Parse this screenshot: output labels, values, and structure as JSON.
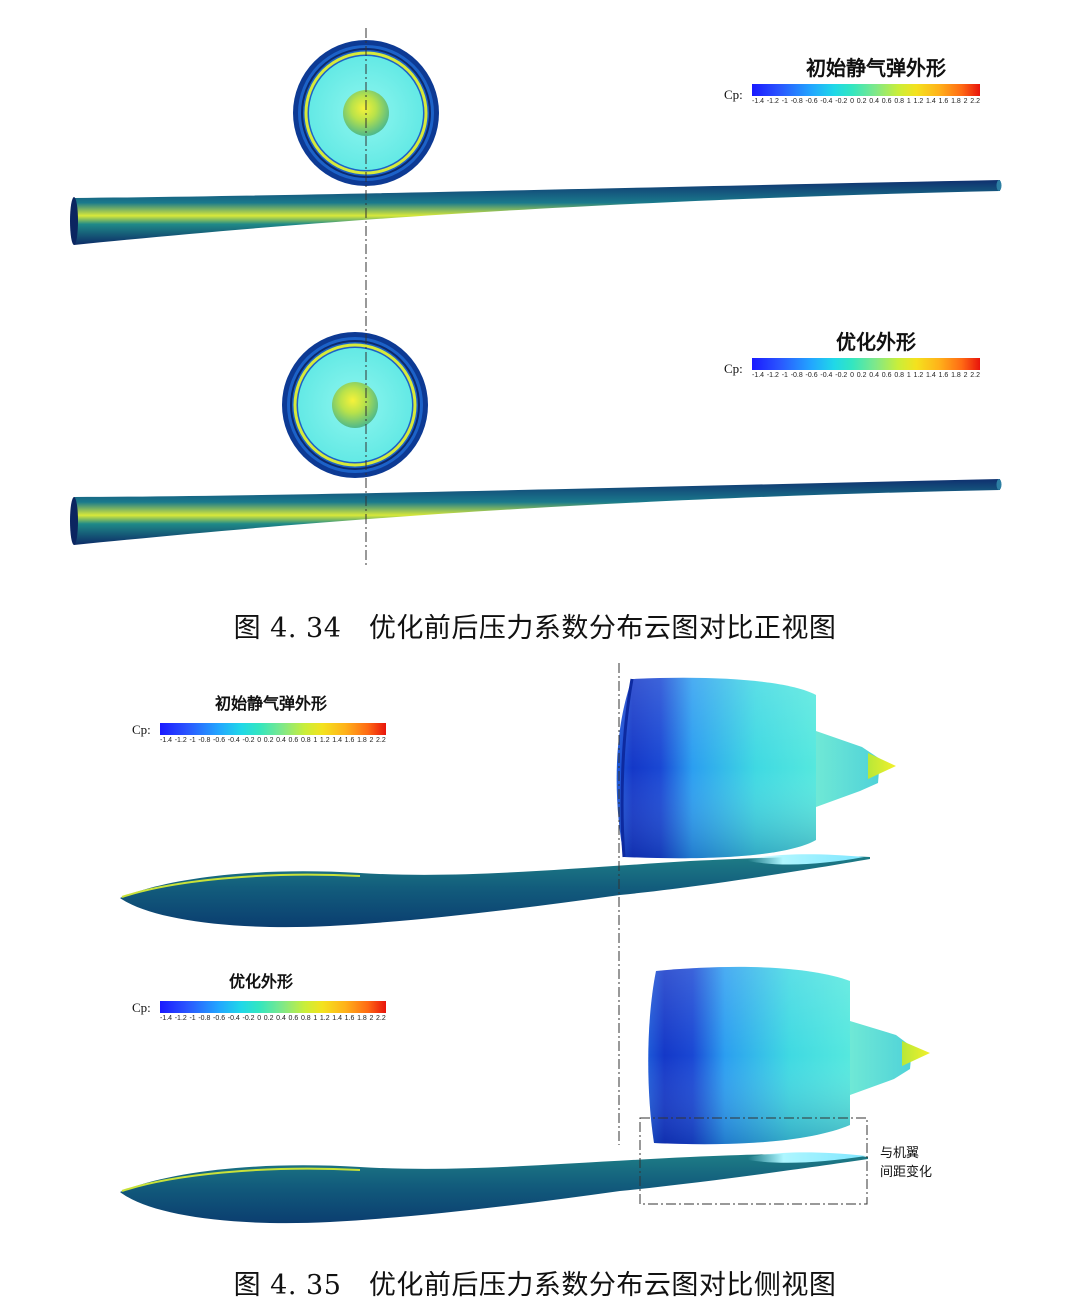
{
  "figure_434": {
    "caption": "图 4. 34　优化前后压力系数分布云图对比正视图",
    "legend_top": {
      "title": "初始静气弹外形"
    },
    "legend_bottom": {
      "title": "优化外形"
    }
  },
  "figure_435": {
    "caption": "图 4. 35　优化前后压力系数分布云图对比侧视图",
    "legend_top": {
      "title": "初始静气弹外形"
    },
    "legend_bottom": {
      "title": "优化外形"
    },
    "annotation": {
      "line1": "与机翼",
      "line2": "间距变化"
    }
  },
  "colorbar": {
    "label": "Cp:",
    "ticks": [
      "-1.4",
      "-1.2",
      "-1",
      "-0.8",
      "-0.6",
      "-0.4",
      "-0.2",
      "0",
      "0.2",
      "0.4",
      "0.6",
      "0.8",
      "1",
      "1.2",
      "1.4",
      "1.6",
      "1.8",
      "2",
      "2.2"
    ],
    "colors": [
      "#1a1aff",
      "#22a6ff",
      "#33e6c0",
      "#f4e21e",
      "#e8140c"
    ]
  }
}
